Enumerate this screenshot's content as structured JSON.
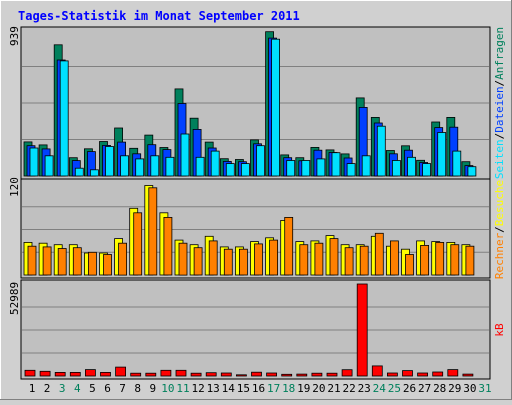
{
  "title": "Tages-Statistik im Monat September 2011",
  "colors": {
    "background": "#d0d0d0",
    "plot": "#c0c0c0",
    "title": "#0000ff",
    "hits": "#00805c",
    "files": "#0040ff",
    "pages": "#00e0ff",
    "visits": "#ffff00",
    "sites": "#ff8000",
    "kbytes": "#ff0000",
    "weekend_label": "#00805c"
  },
  "chart_data": [
    {
      "type": "bar",
      "title": "Tages-Statistik im Monat September 2011",
      "ymax_label": "939",
      "ylim": [
        0,
        939
      ],
      "legend": {
        "placement": "right",
        "entries": [
          "Anfragen",
          "Dateien",
          "Seiten"
        ],
        "separators": [
          "/",
          "/"
        ]
      },
      "categories": [
        "1",
        "2",
        "3",
        "4",
        "5",
        "6",
        "7",
        "8",
        "9",
        "10",
        "11",
        "12",
        "13",
        "14",
        "15",
        "16",
        "17",
        "18",
        "19",
        "20",
        "21",
        "22",
        "23",
        "24",
        "25",
        "26",
        "27",
        "28",
        "29",
        "30"
      ],
      "series": [
        {
          "name": "Anfragen",
          "color": "#00805c",
          "values": [
            219,
            200,
            844,
            118,
            175,
            222,
            309,
            178,
            263,
            183,
            560,
            372,
            218,
            111,
            106,
            232,
            928,
            136,
            118,
            184,
            168,
            142,
            502,
            377,
            164,
            194,
            101,
            347,
            377,
            92
          ]
        },
        {
          "name": "Dateien",
          "color": "#0040ff",
          "values": [
            195,
            174,
            746,
            99,
            157,
            197,
            218,
            143,
            201,
            170,
            466,
            300,
            180,
            94,
            92,
            207,
            887,
            118,
            98,
            166,
            151,
            116,
            441,
            341,
            143,
            166,
            87,
            311,
            314,
            67
          ]
        },
        {
          "name": "Seiten",
          "color": "#00e0ff",
          "values": [
            180,
            130,
            740,
            50,
            40,
            190,
            130,
            110,
            130,
            120,
            270,
            120,
            160,
            80,
            80,
            195,
            880,
            100,
            100,
            110,
            150,
            80,
            130,
            320,
            100,
            120,
            80,
            280,
            160,
            60
          ]
        }
      ]
    },
    {
      "type": "bar",
      "ymax_label": "120",
      "ylim": [
        0,
        120
      ],
      "legend": {
        "placement": "right",
        "entries": [
          "Besuche",
          "Rechner"
        ],
        "separators": [
          "/"
        ]
      },
      "categories": [
        "1",
        "2",
        "3",
        "4",
        "5",
        "6",
        "7",
        "8",
        "9",
        "10",
        "11",
        "12",
        "13",
        "14",
        "15",
        "16",
        "17",
        "18",
        "19",
        "20",
        "21",
        "22",
        "23",
        "24",
        "25",
        "26",
        "27",
        "28",
        "29",
        "30"
      ],
      "series": [
        {
          "name": "Besuche",
          "color": "#ffff00",
          "values": [
            43,
            42,
            40,
            40,
            29,
            29,
            48,
            88,
            118,
            82,
            46,
            40,
            51,
            37,
            37,
            44,
            49,
            72,
            44,
            45,
            52,
            40,
            40,
            51,
            38,
            34,
            45,
            44,
            43,
            40
          ]
        },
        {
          "name": "Rechner",
          "color": "#ff8000",
          "values": [
            38,
            37,
            35,
            36,
            30,
            27,
            42,
            82,
            115,
            76,
            42,
            36,
            45,
            34,
            34,
            41,
            46,
            76,
            40,
            42,
            48,
            36,
            38,
            55,
            45,
            27,
            39,
            43,
            40,
            38
          ]
        }
      ]
    },
    {
      "type": "bar",
      "ymax_label": "52989",
      "ylim": [
        0,
        52989
      ],
      "legend": {
        "placement": "right",
        "entries": [
          "kB"
        ],
        "separators": []
      },
      "categories": [
        "1",
        "2",
        "3",
        "4",
        "5",
        "6",
        "7",
        "8",
        "9",
        "10",
        "11",
        "12",
        "13",
        "14",
        "15",
        "16",
        "17",
        "18",
        "19",
        "20",
        "21",
        "22",
        "23",
        "24",
        "25",
        "26",
        "27",
        "28",
        "29",
        "30"
      ],
      "series": [
        {
          "name": "kB",
          "color": "#ff0000",
          "values": [
            3300,
            2700,
            2100,
            2100,
            3700,
            2100,
            5100,
            1600,
            1600,
            3300,
            3300,
            1600,
            1900,
            1700,
            700,
            2200,
            1700,
            1000,
            1100,
            1600,
            1600,
            3600,
            52989,
            5800,
            1700,
            3100,
            1700,
            2300,
            3700,
            1100
          ]
        }
      ]
    }
  ],
  "x_axis": {
    "labels": [
      "1",
      "2",
      "3",
      "4",
      "5",
      "6",
      "7",
      "8",
      "9",
      "10",
      "11",
      "12",
      "13",
      "14",
      "15",
      "16",
      "17",
      "18",
      "19",
      "20",
      "21",
      "22",
      "23",
      "24",
      "25",
      "26",
      "27",
      "28",
      "29",
      "30",
      "31"
    ],
    "weekend": [
      3,
      4,
      10,
      11,
      17,
      18,
      24,
      25,
      31
    ]
  }
}
